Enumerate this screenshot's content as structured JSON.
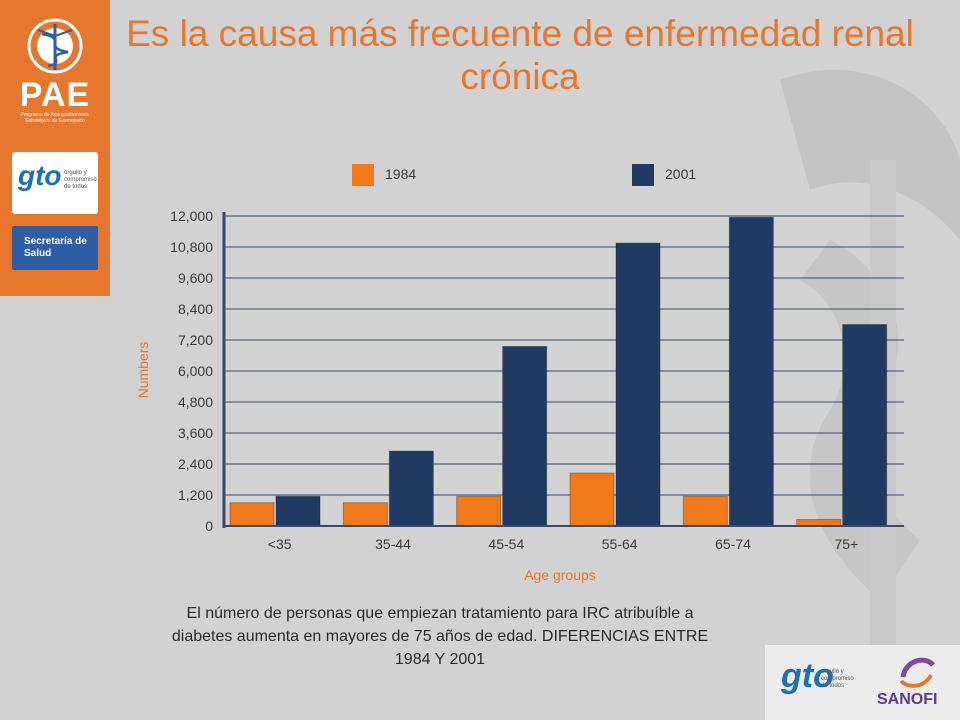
{
  "title": "Es la causa más frecuente de enfermedad renal crónica",
  "sidebar": {
    "logo_text": "PAE",
    "logo_subtext": "Programa de Acompañamiento Estratégico de Guanajuato",
    "gto_logo": "gto",
    "gto_tagline": "orgullo y compromiso de todos",
    "secretaria": "Secretaría de Salud"
  },
  "legend": [
    "1984",
    "2001"
  ],
  "caption": "El número de personas que empiezan tratamiento para IRC atribuíble a diabetes aumenta en mayores de 75 años de edad. DIFERENCIAS ENTRE 1984 Y 2001",
  "footer": {
    "gto_logo": "gto",
    "gto_tagline": "orgullo y compromiso de todos",
    "sanofi": "SANOFI"
  },
  "colors": {
    "accent": "#e8772e",
    "series_1984": "#f07a1a",
    "series_2001": "#1f3a63",
    "grid": "#3a4a6a"
  },
  "chart_data": {
    "type": "bar",
    "categories": [
      "<35",
      "35-44",
      "45-54",
      "55-64",
      "65-74",
      "75+"
    ],
    "series": [
      {
        "name": "1984",
        "values": [
          900,
          900,
          1150,
          2050,
          1150,
          250
        ]
      },
      {
        "name": "2001",
        "values": [
          1150,
          2900,
          6950,
          10950,
          11950,
          7800
        ]
      }
    ],
    "ylim": [
      0,
      12000
    ],
    "yticks": [
      "0",
      "1,200",
      "2,400",
      "3,600",
      "4,800",
      "6,000",
      "7,200",
      "8,400",
      "9,600",
      "10,800",
      "12,000"
    ],
    "xlabel": "Age groups",
    "ylabel": "Numbers",
    "legend_position": "top",
    "grid": true
  }
}
